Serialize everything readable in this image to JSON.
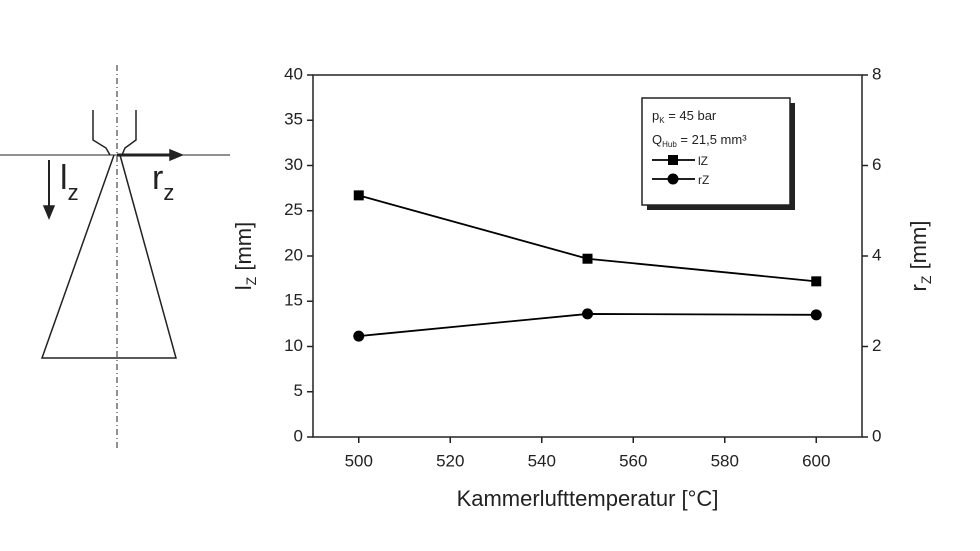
{
  "diagram": {
    "axial_label": [
      "l",
      "z"
    ],
    "radial_label": [
      "r",
      "z"
    ]
  },
  "chart_data": {
    "type": "line",
    "xlabel": "Kammerlufttemperatur [°C]",
    "ylabel": [
      "l",
      "Z",
      " [mm]"
    ],
    "y2label": [
      "r",
      "Z",
      " [mm]"
    ],
    "annotations": [
      [
        "p",
        "K",
        " = 45 bar"
      ],
      [
        "Q",
        "Hub",
        " = 21,5 mm³"
      ]
    ],
    "x": [
      500,
      550,
      600
    ],
    "series": [
      {
        "name": "lZ",
        "color": "#000000",
        "marker": "square",
        "values": [
          26.7,
          19.7,
          17.2
        ]
      },
      {
        "name": "rZ",
        "color": "#000000",
        "marker": "circle",
        "axis": "y2",
        "values": [
          2.23,
          2.72,
          2.7
        ]
      }
    ],
    "xlim": [
      490,
      610
    ],
    "xticks": [
      500,
      520,
      540,
      560,
      580,
      600
    ],
    "ylim": [
      0,
      40
    ],
    "yticks": [
      0,
      5,
      10,
      15,
      20,
      25,
      30,
      35,
      40
    ],
    "y2lim": [
      0,
      8
    ],
    "y2ticks": [
      0,
      2,
      4,
      6,
      8
    ]
  }
}
